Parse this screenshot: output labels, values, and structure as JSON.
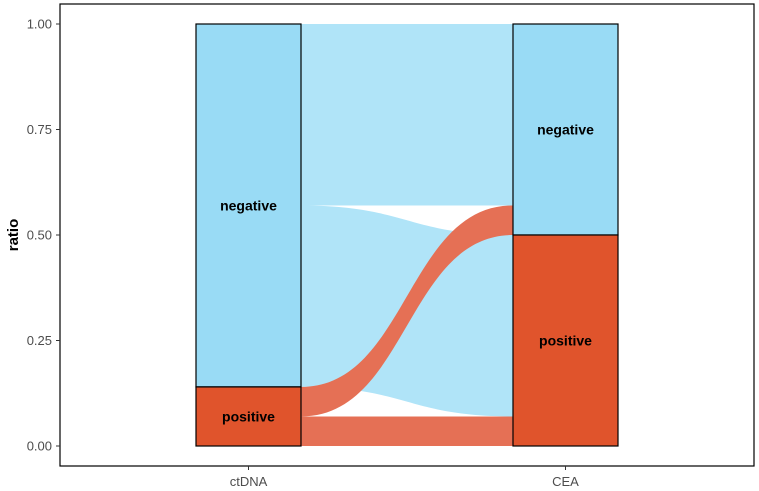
{
  "chart_data": {
    "type": "alluvial",
    "ylabel": "ratio",
    "xlabel": "",
    "ylim": [
      0,
      1
    ],
    "y_ticks": [
      "0.00",
      "0.25",
      "0.50",
      "0.75",
      "1.00"
    ],
    "axes": [
      "ctDNA",
      "CEA"
    ],
    "colors": {
      "negative": "#99DBF5",
      "positive": "#E0542C",
      "negative_flow": "#B0E4F8",
      "positive_flow": "#E57055"
    },
    "strata": [
      {
        "axis": "ctDNA",
        "name": "negative",
        "label": "negative",
        "y0": 0.14,
        "y1": 1.0
      },
      {
        "axis": "ctDNA",
        "name": "positive",
        "label": "positive",
        "y0": 0.0,
        "y1": 0.14
      },
      {
        "axis": "CEA",
        "name": "negative",
        "label": "negative",
        "y0": 0.5,
        "y1": 1.0
      },
      {
        "axis": "CEA",
        "name": "positive",
        "label": "positive",
        "y0": 0.0,
        "y1": 0.5
      }
    ],
    "flows": [
      {
        "from": "negative",
        "to": "negative",
        "color_key": "negative",
        "left": [
          0.57,
          1.0
        ],
        "right": [
          0.57,
          1.0
        ]
      },
      {
        "from": "negative",
        "to": "positive",
        "color_key": "negative",
        "left": [
          0.14,
          0.57
        ],
        "right": [
          0.07,
          0.5
        ]
      },
      {
        "from": "positive",
        "to": "negative",
        "color_key": "positive",
        "left": [
          0.07,
          0.14
        ],
        "right": [
          0.5,
          0.57
        ]
      },
      {
        "from": "positive",
        "to": "positive",
        "color_key": "positive",
        "left": [
          0.0,
          0.07
        ],
        "right": [
          0.0,
          0.07
        ]
      }
    ]
  }
}
